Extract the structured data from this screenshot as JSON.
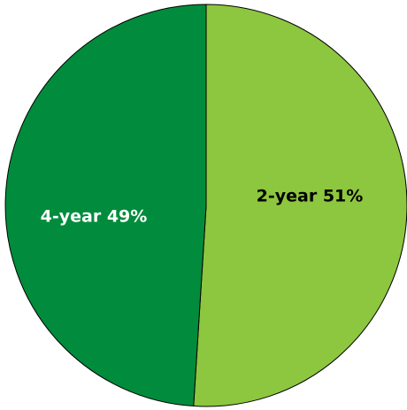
{
  "chart_data": {
    "type": "pie",
    "title": "",
    "slices": [
      {
        "label": "2-year",
        "value": 51,
        "display": "2-year 51%",
        "color": "#8dc63f",
        "label_color": "#000000"
      },
      {
        "label": "4-year",
        "value": 49,
        "display": "4-year 49%",
        "color": "#008c3c",
        "label_color": "#ffffff"
      }
    ],
    "start": "top",
    "direction": "clockwise",
    "legend": "none"
  }
}
